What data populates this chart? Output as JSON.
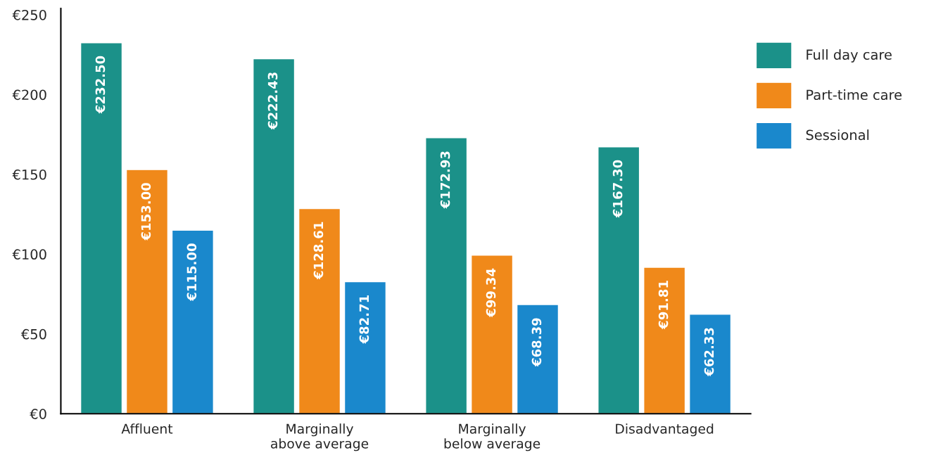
{
  "chart_data": {
    "type": "bar",
    "categories": [
      "Affluent",
      "Marginally\nabove average",
      "Marginally\nbelow average",
      "Disadvantaged"
    ],
    "series": [
      {
        "name": "Full day care",
        "color": "#1b9189",
        "values": [
          232.5,
          222.43,
          172.93,
          167.3
        ],
        "value_labels": [
          "€232.50",
          "€222.43",
          "€172.93",
          "€167.30"
        ]
      },
      {
        "name": "Part-time care",
        "color": "#f0891a",
        "values": [
          153.0,
          128.61,
          99.34,
          91.81
        ],
        "value_labels": [
          "€153.00",
          "€128.61",
          "€99.34",
          "€91.81"
        ]
      },
      {
        "name": "Sessional",
        "color": "#1a88cc",
        "values": [
          115.0,
          82.71,
          68.39,
          62.33
        ],
        "value_labels": [
          "€115.00",
          "€82.71",
          "€68.39",
          "€62.33"
        ]
      }
    ],
    "ylim": [
      0,
      254
    ],
    "yticks": [
      {
        "value": 0,
        "label": "€0"
      },
      {
        "value": 50,
        "label": "€50"
      },
      {
        "value": 100,
        "label": "€100"
      },
      {
        "value": 150,
        "label": "€150"
      },
      {
        "value": 200,
        "label": "€200"
      },
      {
        "value": 250,
        "label": "€250"
      }
    ],
    "grid": false,
    "legend": "right"
  }
}
